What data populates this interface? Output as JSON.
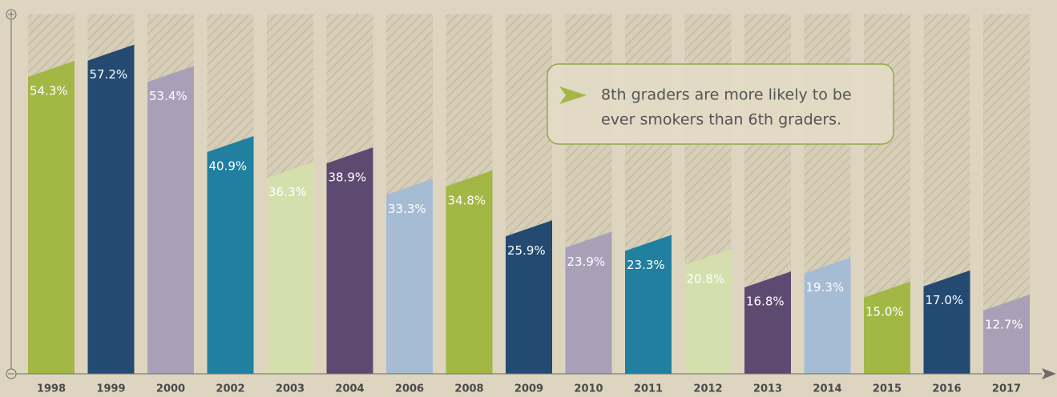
{
  "chart_data": {
    "type": "bar",
    "categories": [
      "1998",
      "1999",
      "2000",
      "2002",
      "2003",
      "2004",
      "2006",
      "2008",
      "2009",
      "2010",
      "2011",
      "2012",
      "2013",
      "2014",
      "2015",
      "2016",
      "2017"
    ],
    "values": [
      54.3,
      57.2,
      53.4,
      40.9,
      36.3,
      38.9,
      33.3,
      34.8,
      25.9,
      23.9,
      23.3,
      20.8,
      16.8,
      19.3,
      15.0,
      17.0,
      12.7
    ],
    "value_labels": [
      "54.3%",
      "57.2%",
      "53.4%",
      "40.9%",
      "36.3%",
      "38.9%",
      "33.3%",
      "34.8%",
      "25.9%",
      "23.9%",
      "23.3%",
      "20.8%",
      "16.8%",
      "19.3%",
      "15.0%",
      "17.0%",
      "12.7%"
    ],
    "colors": [
      "#a3b745",
      "#244a72",
      "#a9a0b8",
      "#217fa0",
      "#d5dfae",
      "#5c4a70",
      "#a6bcd4",
      "#a3b745",
      "#244a72",
      "#a9a0b8",
      "#217fa0",
      "#d5dfae",
      "#5c4a70",
      "#a6bcd4",
      "#a3b745",
      "#244a72",
      "#a9a0b8"
    ],
    "ylim": [
      0,
      64
    ],
    "annotation": [
      "8th graders are more likely to be",
      "ever smokers than 6th graders."
    ]
  }
}
